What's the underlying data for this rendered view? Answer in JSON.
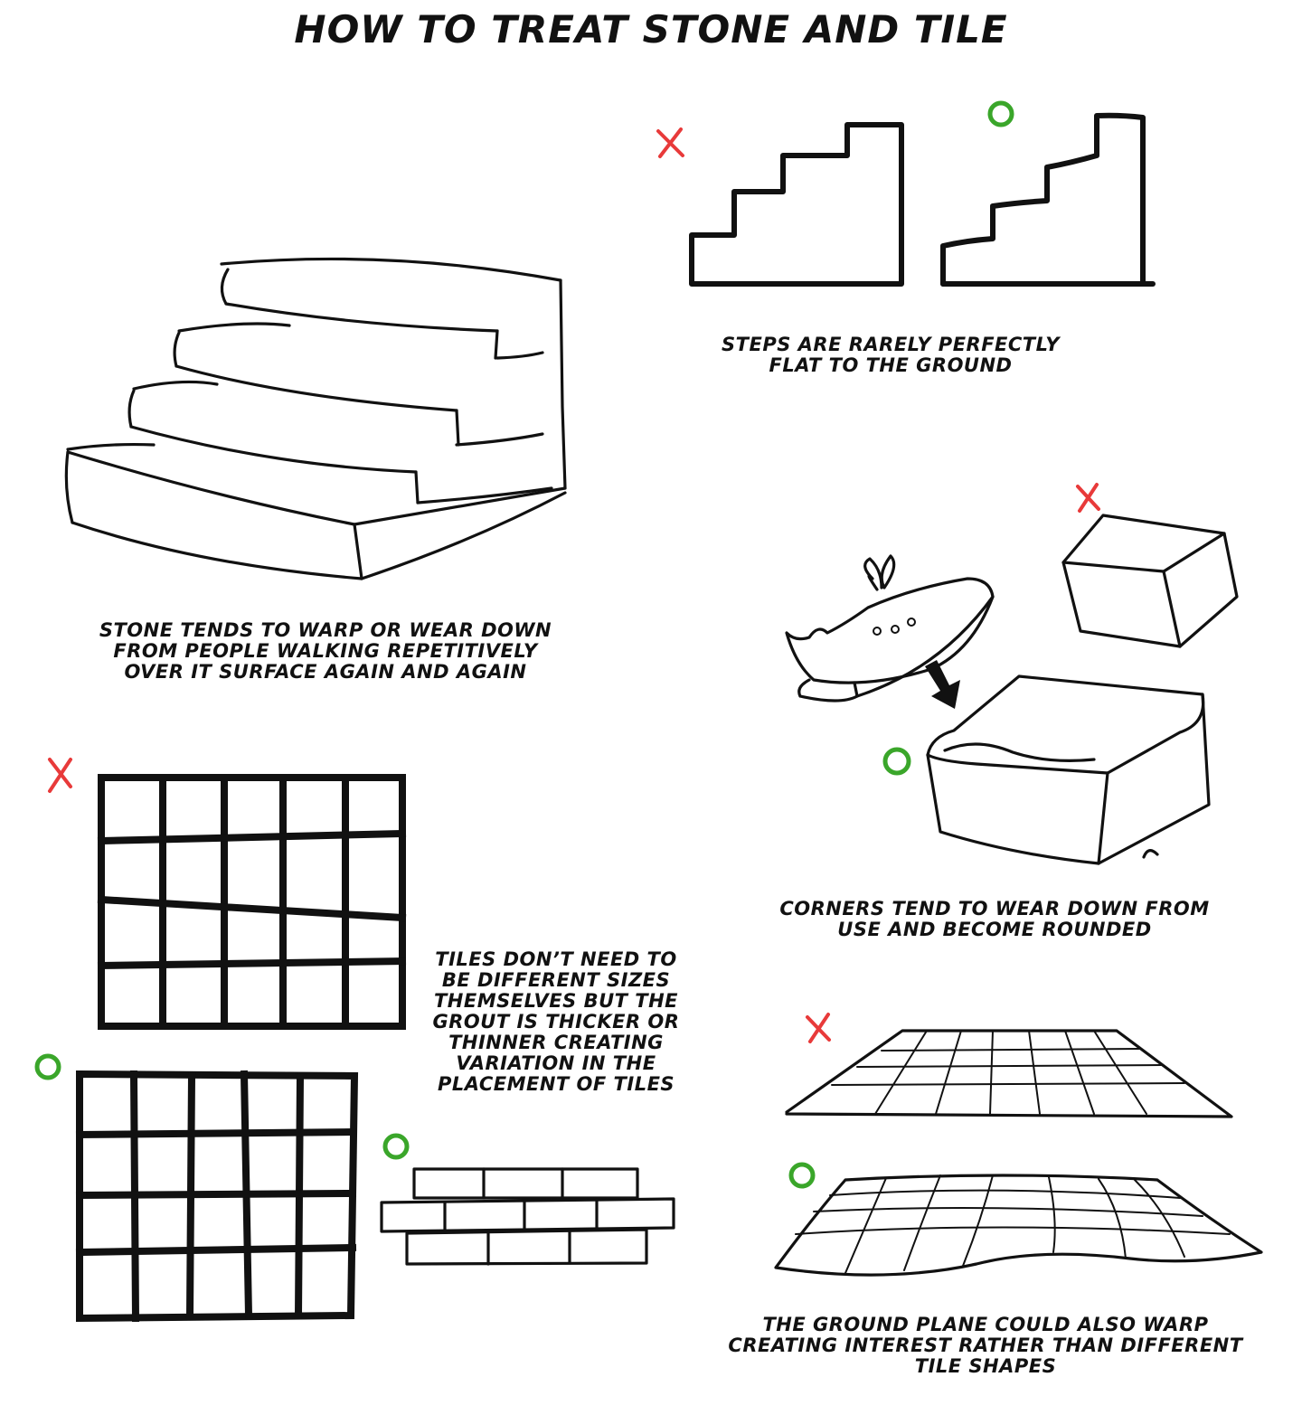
{
  "title": "HOW TO TREAT STONE AND TILE",
  "colors": {
    "wrong_mark": "#e83a3a",
    "right_mark": "#3aa62a",
    "ink": "#111111"
  },
  "marks": {
    "wrong_icon": "x-mark-icon",
    "right_icon": "circle-mark-icon"
  },
  "captions": {
    "steps_flat": [
      "STEPS ARE RARELY PERFECTLY",
      "FLAT TO THE GROUND"
    ],
    "stone_warp": [
      "STONE TENDS TO WARP OR WEAR DOWN",
      "FROM PEOPLE WALKING REPETITIVELY",
      "OVER IT SURFACE AGAIN AND AGAIN"
    ],
    "corners": [
      "CORNERS TEND TO WEAR DOWN FROM",
      "USE AND BECOME ROUNDED"
    ],
    "tiles": [
      "TILES DON’T NEED TO",
      "BE DIFFERENT SIZES",
      "THEMSELVES BUT THE",
      "GROUT IS THICKER OR",
      "THINNER CREATING",
      "VARIATION IN THE",
      "PLACEMENT OF TILES"
    ],
    "ground_plane": [
      "THE GROUND PLANE COULD ALSO WARP",
      "CREATING INTEREST RATHER THAN DIFFERENT",
      "TILE SHAPES"
    ]
  }
}
